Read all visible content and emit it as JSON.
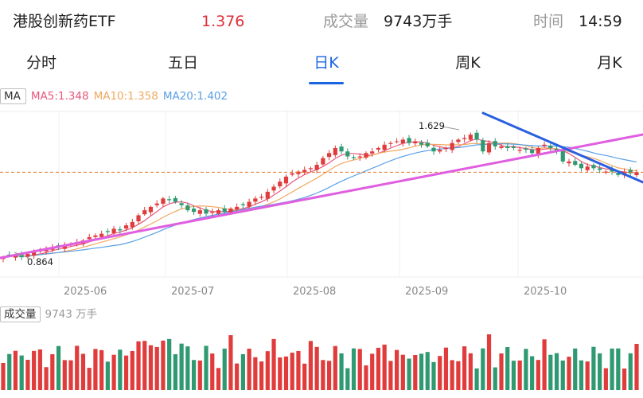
{
  "header": {
    "name": "港股创新药ETF",
    "price": "1.376",
    "volume_label": "成交量",
    "volume_value": "9743万手",
    "time_label": "时间",
    "time_value": "14:59"
  },
  "tabs": [
    {
      "label": "分时",
      "active": false
    },
    {
      "label": "五日",
      "active": false
    },
    {
      "label": "日K",
      "active": true
    },
    {
      "label": "周K",
      "active": false
    },
    {
      "label": "月K",
      "active": false
    }
  ],
  "ma_legend": {
    "tag": "MA",
    "ma5": "MA5:1.348",
    "ma10": "MA10:1.358",
    "ma20": "MA20:1.402"
  },
  "volume_legend": {
    "tag": "成交量",
    "value": "9743 万手"
  },
  "colors": {
    "up": "#e03c3c",
    "down": "#2f9a72",
    "ma5": "#e8567c",
    "ma10": "#f0a860",
    "ma20": "#5aa0e6",
    "trend_up": "#e05ee0",
    "trend_down": "#2a5fe0",
    "current_price_line": "#e8742a",
    "price_text": "#e0303a",
    "muted": "#999999",
    "active_tab": "#1a66e0"
  },
  "chart_data": {
    "type": "candlestick",
    "x_labels": [
      "2025-06",
      "2025-07",
      "2025-08",
      "2025-09",
      "2025-10"
    ],
    "annotations": {
      "high": "1.629",
      "low": "0.864"
    },
    "current_price": 1.376,
    "closes": [
      0.87,
      0.88,
      0.88,
      0.87,
      0.89,
      0.9,
      0.91,
      0.92,
      0.93,
      0.93,
      0.94,
      0.95,
      0.96,
      0.97,
      0.99,
      1.0,
      1.01,
      1.02,
      1.04,
      1.03,
      1.06,
      1.08,
      1.12,
      1.15,
      1.17,
      1.19,
      1.22,
      1.21,
      1.2,
      1.18,
      1.15,
      1.14,
      1.15,
      1.13,
      1.14,
      1.15,
      1.14,
      1.16,
      1.17,
      1.18,
      1.2,
      1.22,
      1.23,
      1.26,
      1.29,
      1.32,
      1.35,
      1.37,
      1.38,
      1.39,
      1.4,
      1.42,
      1.46,
      1.49,
      1.52,
      1.5,
      1.47,
      1.46,
      1.47,
      1.49,
      1.5,
      1.52,
      1.54,
      1.55,
      1.56,
      1.57,
      1.55,
      1.56,
      1.54,
      1.53,
      1.5,
      1.51,
      1.52,
      1.55,
      1.57,
      1.58,
      1.6,
      1.57,
      1.5,
      1.55,
      1.53,
      1.53,
      1.52,
      1.52,
      1.51,
      1.51,
      1.49,
      1.52,
      1.54,
      1.52,
      1.5,
      1.44,
      1.44,
      1.42,
      1.4,
      1.41,
      1.4,
      1.39,
      1.38,
      1.38,
      1.36,
      1.38,
      1.37,
      1.376
    ]
  }
}
